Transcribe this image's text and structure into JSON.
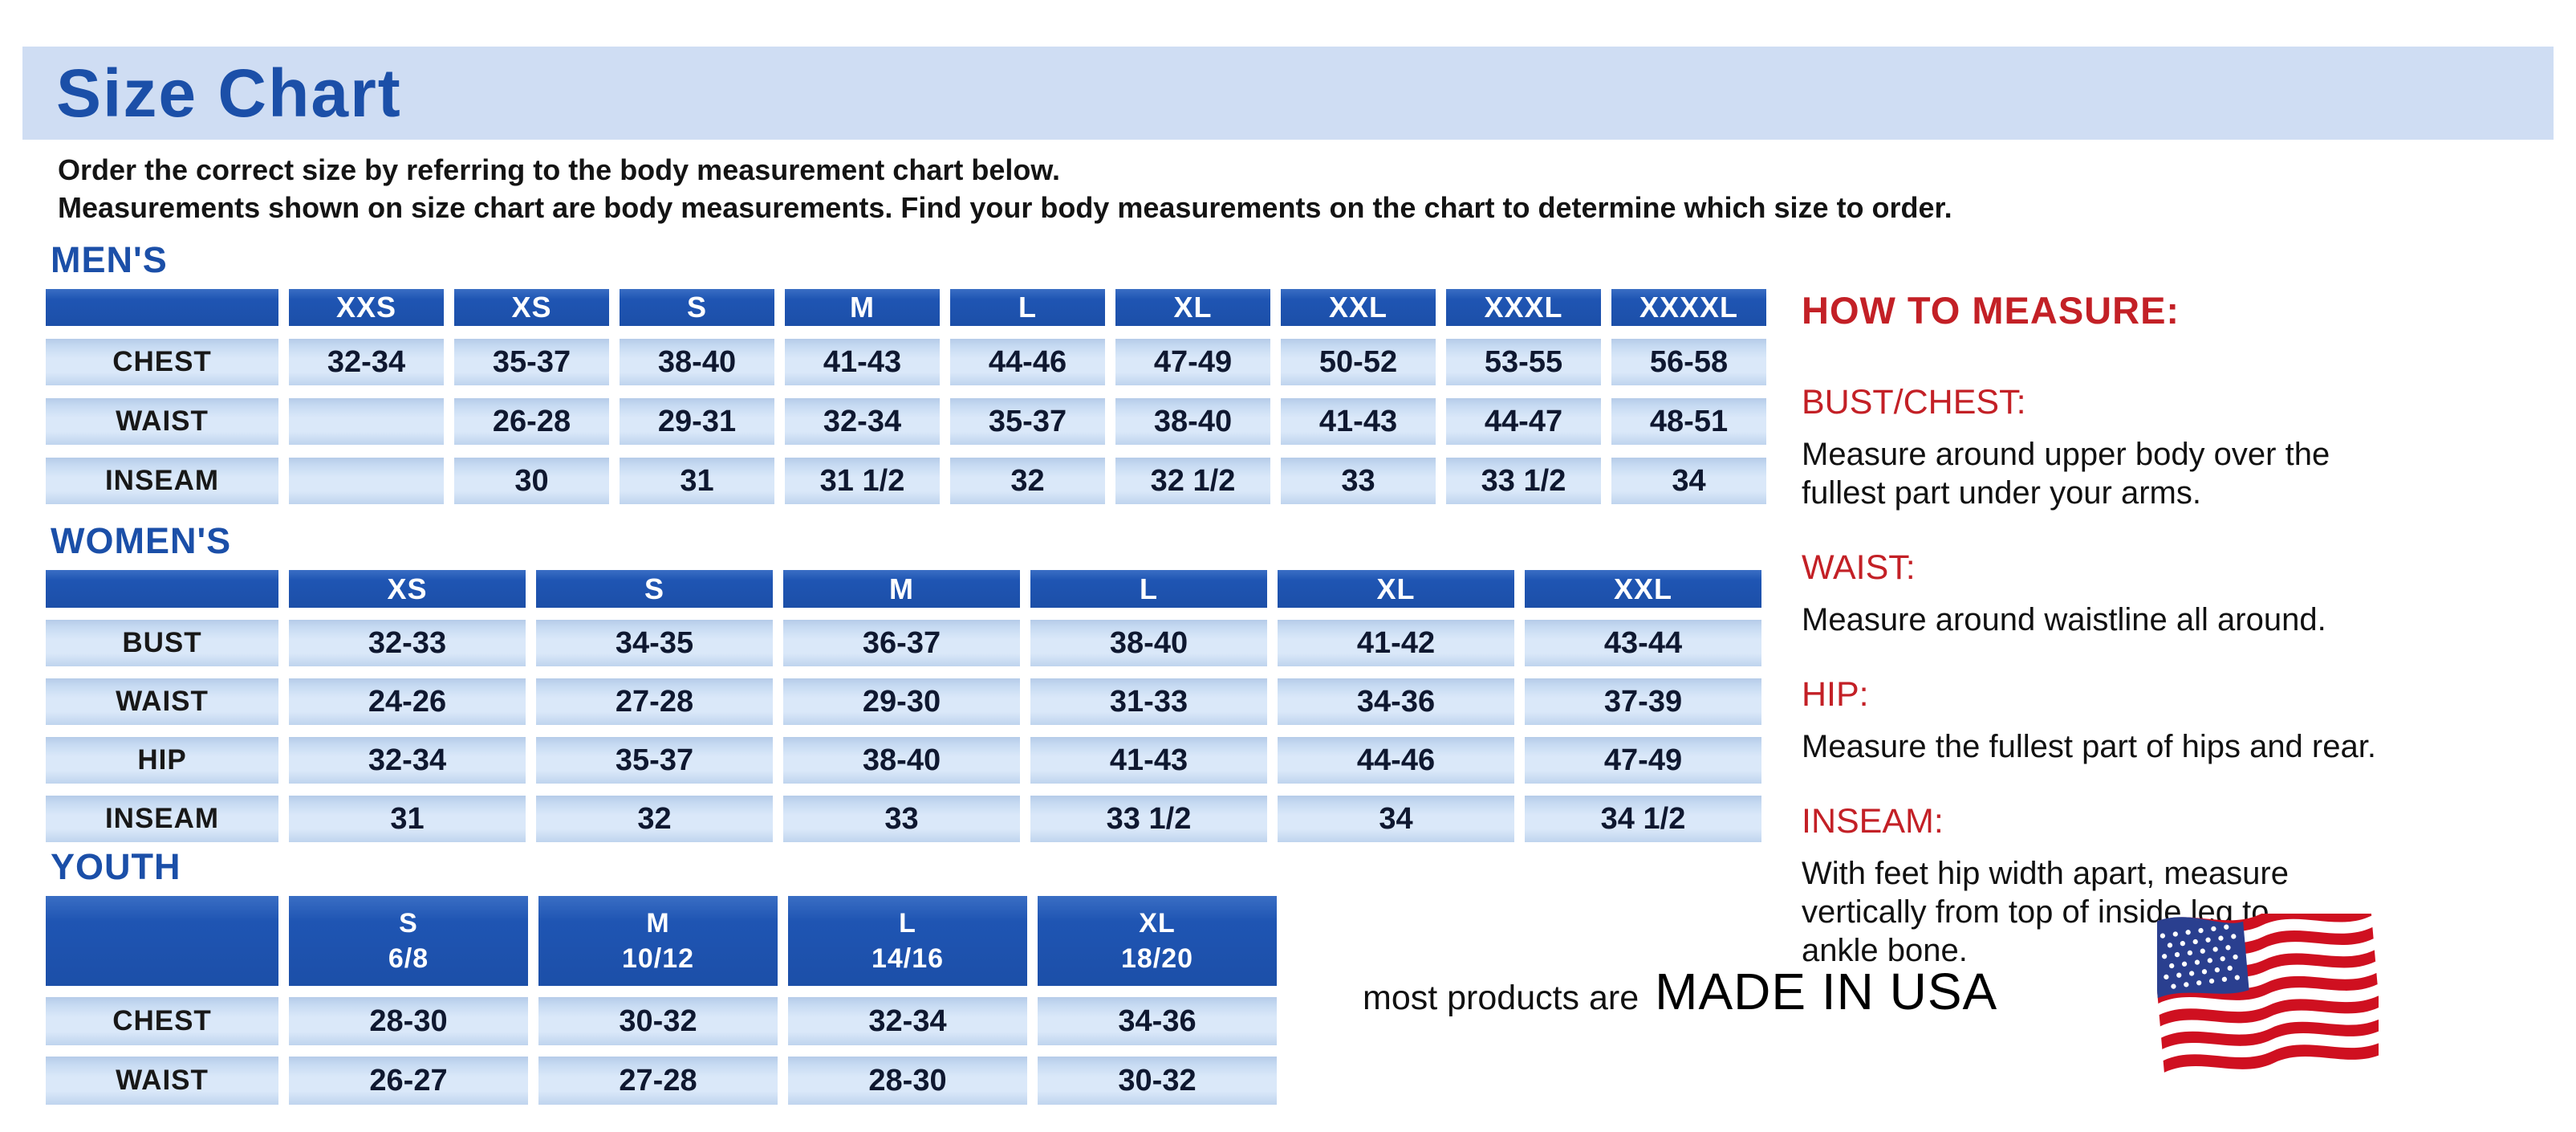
{
  "title": "Size Chart",
  "intro_lines": [
    "Order the correct size by referring to the body measurement chart below.",
    "Measurements shown on size chart are body measurements.  Find your body measurements on the chart to determine which size to order."
  ],
  "sections": [
    {
      "heading": "MEN'S",
      "columns": [
        "XXS",
        "XS",
        "S",
        "M",
        "L",
        "XL",
        "XXL",
        "XXXL",
        "XXXXL"
      ],
      "rows": [
        {
          "label": "CHEST",
          "values": [
            "32-34",
            "35-37",
            "38-40",
            "41-43",
            "44-46",
            "47-49",
            "50-52",
            "53-55",
            "56-58"
          ]
        },
        {
          "label": "WAIST",
          "values": [
            "",
            "26-28",
            "29-31",
            "32-34",
            "35-37",
            "38-40",
            "41-43",
            "44-47",
            "48-51"
          ]
        },
        {
          "label": "INSEAM",
          "values": [
            "",
            "30",
            "31",
            "31 1/2",
            "32",
            "32 1/2",
            "33",
            "33 1/2",
            "34"
          ]
        }
      ]
    },
    {
      "heading": "WOMEN'S",
      "columns": [
        "XS",
        "S",
        "M",
        "L",
        "XL",
        "XXL"
      ],
      "rows": [
        {
          "label": "BUST",
          "values": [
            "32-33",
            "34-35",
            "36-37",
            "38-40",
            "41-42",
            "43-44"
          ]
        },
        {
          "label": "WAIST",
          "values": [
            "24-26",
            "27-28",
            "29-30",
            "31-33",
            "34-36",
            "37-39"
          ]
        },
        {
          "label": "HIP",
          "values": [
            "32-34",
            "35-37",
            "38-40",
            "41-43",
            "44-46",
            "47-49"
          ]
        },
        {
          "label": "INSEAM",
          "values": [
            "31",
            "32",
            "33",
            "33 1/2",
            "34",
            "34 1/2"
          ]
        }
      ]
    },
    {
      "heading": "YOUTH",
      "columns": [
        {
          "size": "S",
          "range": "6/8"
        },
        {
          "size": "M",
          "range": "10/12"
        },
        {
          "size": "L",
          "range": "14/16"
        },
        {
          "size": "XL",
          "range": "18/20"
        }
      ],
      "rows": [
        {
          "label": "CHEST",
          "values": [
            "28-30",
            "30-32",
            "32-34",
            "34-36"
          ]
        },
        {
          "label": "WAIST",
          "values": [
            "26-27",
            "27-28",
            "28-30",
            "30-32"
          ]
        }
      ]
    }
  ],
  "how_to_measure": {
    "heading": "HOW TO MEASURE:",
    "items": [
      {
        "term": "BUST/CHEST:",
        "desc_lines": [
          "Measure around upper body over the",
          "fullest part under your arms."
        ]
      },
      {
        "term": "WAIST:",
        "desc_lines": [
          "Measure around waistline all around."
        ]
      },
      {
        "term": "HIP:",
        "desc_lines": [
          "Measure the fullest part of hips and rear."
        ]
      },
      {
        "term": "INSEAM:",
        "desc_lines": [
          "With feet hip width apart, measure",
          "vertically from top of inside leg to",
          "ankle bone."
        ]
      }
    ]
  },
  "footer": {
    "prefix": "most products are",
    "emphasis": "MADE IN USA",
    "flag_icon": "us-flag-icon"
  },
  "colors": {
    "band_bg": "#cfddf3",
    "deep_blue": "#1b4fa8",
    "header_blue": "#1f55b3",
    "cell_blue": "#c6daf2",
    "cell_blue_light": "#dae8f9",
    "cell_blue_dark": "#b5cbe8",
    "red": "#c32026",
    "navy_ink": "#0f1830",
    "flag_red": "#cf1020",
    "flag_blue": "#2a3f8f"
  }
}
